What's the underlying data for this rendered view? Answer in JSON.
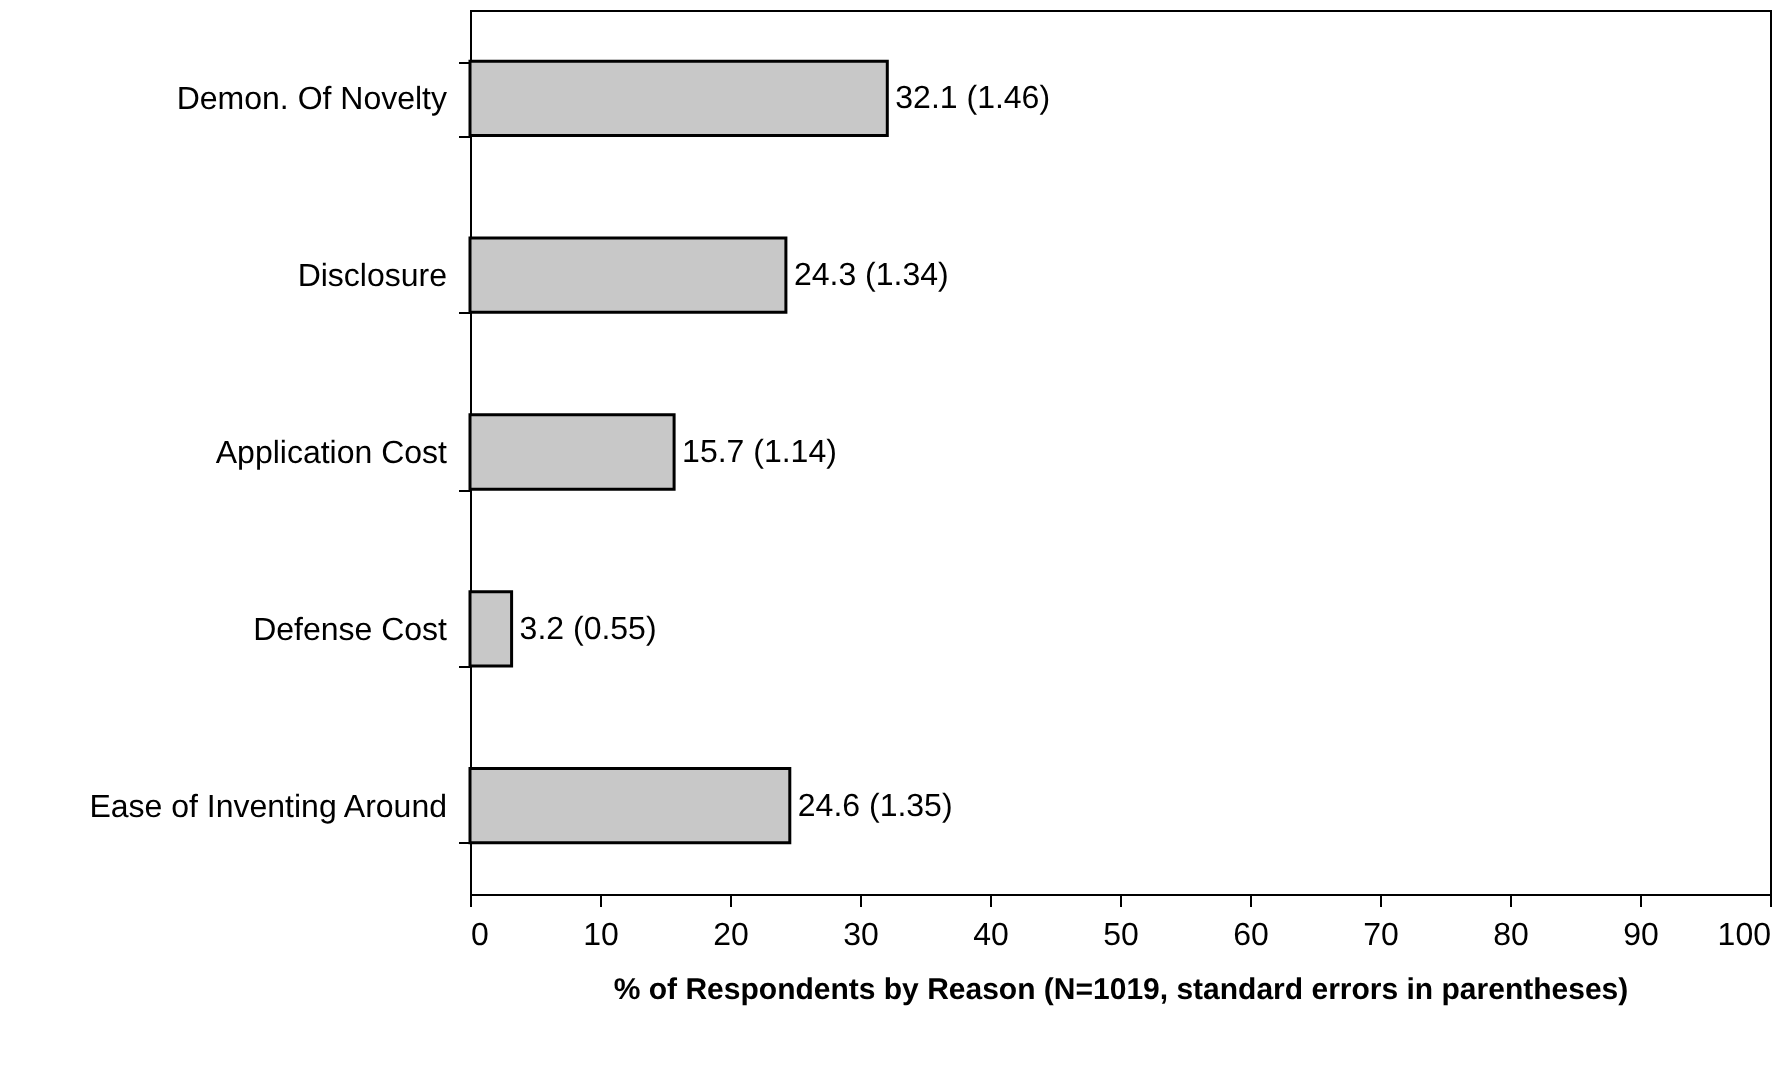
{
  "chart_data": {
    "type": "bar",
    "orientation": "horizontal",
    "xlabel": "% of Respondents by Reason (N=1019, standard errors in parentheses)",
    "categories": [
      "Demon. Of Novelty",
      "Disclosure",
      "Application Cost",
      "Defense Cost",
      "Ease of Inventing Around"
    ],
    "values": [
      32.1,
      24.3,
      15.7,
      3.2,
      24.6
    ],
    "value_labels": [
      "32.1 (1.46)",
      "24.3 (1.34)",
      "15.7 (1.14)",
      "3.2 (0.55)",
      "24.6 (1.35)"
    ],
    "color": "#c8c8c8",
    "xlim": [
      0,
      100
    ],
    "xticks": [
      0,
      10,
      20,
      30,
      40,
      50,
      60,
      70,
      80,
      90,
      100
    ]
  }
}
